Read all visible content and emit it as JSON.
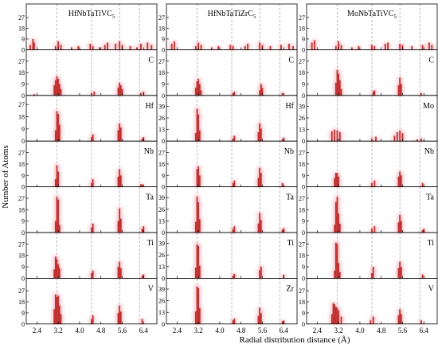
{
  "chart_data": {
    "type": "bar",
    "xlabel": "Radial  distribution distance (Å)",
    "ylabel": "Number of Atoms",
    "x_ticks": [
      2.4,
      3.2,
      4.0,
      4.8,
      5.6,
      6.4
    ],
    "x_tick_labels": [
      "2.4",
      "3.2",
      "4.0",
      "4.8",
      "5.6",
      "6.4"
    ],
    "xlim": [
      2.0,
      6.9
    ],
    "reference_lines_x": [
      3.15,
      4.45,
      5.5,
      6.25
    ],
    "bar_color": "#c03030",
    "glow_color": "#f4b8c0",
    "grid": false,
    "columns": [
      {
        "title": "HfNbTaTiVC",
        "title_sub": "5",
        "rows": [
          {
            "label": "",
            "yticks": [
              0,
              9,
              18,
              27
            ],
            "ymax": 33,
            "x": [
              2.15,
              2.25,
              2.3,
              3.1,
              3.2,
              3.3,
              3.7,
              3.95,
              4.4,
              4.5,
              4.75,
              4.95,
              5.05,
              5.35,
              5.5,
              5.6,
              5.9,
              6.15,
              6.3,
              6.55,
              6.7
            ],
            "values": [
              4,
              9,
              6,
              3,
              7,
              4,
              2,
              3,
              5,
              3,
              2,
              4,
              6,
              5,
              7,
              4,
              3,
              2,
              5,
              6,
              4
            ]
          },
          {
            "label": "C",
            "yticks": [
              0,
              9,
              18,
              27
            ],
            "ymax": 31,
            "x": [
              2.3,
              3.05,
              3.1,
              3.15,
              3.2,
              3.25,
              3.3,
              4.45,
              4.55,
              5.45,
              5.5,
              5.55,
              5.6,
              6.3,
              6.4
            ],
            "values": [
              1,
              8,
              12,
              15,
              13,
              9,
              5,
              2,
              3,
              6,
              10,
              8,
              5,
              2,
              3
            ]
          },
          {
            "label": "Hf",
            "yticks": [
              0,
              9,
              18,
              27
            ],
            "ymax": 29,
            "x": [
              3.1,
              3.15,
              3.2,
              3.25,
              4.45,
              4.5,
              5.45,
              5.5,
              5.55,
              6.35,
              6.4
            ],
            "values": [
              8,
              22,
              20,
              12,
              3,
              5,
              8,
              13,
              10,
              2,
              3
            ]
          },
          {
            "label": "Nb",
            "yticks": [
              0,
              9,
              18,
              27
            ],
            "ymax": 31,
            "x": [
              3.1,
              3.15,
              3.2,
              4.45,
              4.5,
              5.45,
              5.5,
              5.55,
              6.3,
              6.35
            ],
            "values": [
              6,
              17,
              12,
              3,
              6,
              8,
              14,
              9,
              2,
              2
            ]
          },
          {
            "label": "Ta",
            "yticks": [
              0,
              9,
              18,
              27
            ],
            "ymax": 31,
            "x": [
              3.1,
              3.15,
              3.2,
              3.25,
              4.45,
              4.5,
              5.45,
              5.5,
              5.55,
              6.35,
              6.4
            ],
            "values": [
              9,
              28,
              26,
              6,
              4,
              7,
              9,
              19,
              11,
              3,
              5
            ]
          },
          {
            "label": "Ti",
            "yticks": [
              0,
              9,
              18,
              27
            ],
            "ymax": 31,
            "x": [
              3.05,
              3.1,
              3.15,
              3.2,
              3.25,
              4.45,
              4.5,
              5.45,
              5.5,
              5.55,
              6.35,
              6.4
            ],
            "values": [
              7,
              17,
              15,
              11,
              8,
              4,
              6,
              9,
              13,
              8,
              2,
              3
            ]
          },
          {
            "label": "V",
            "yticks": [
              0,
              9,
              18,
              27
            ],
            "ymax": 32,
            "x": [
              3.05,
              3.1,
              3.15,
              3.2,
              3.25,
              3.3,
              4.45,
              4.5,
              5.45,
              5.5,
              5.55,
              6.35
            ],
            "values": [
              12,
              24,
              22,
              23,
              15,
              8,
              4,
              7,
              9,
              15,
              10,
              4
            ]
          }
        ]
      },
      {
        "title": "HfNbTaTiZrC",
        "title_sub": "5",
        "rows": [
          {
            "label": "",
            "yticks": [
              0,
              9,
              18,
              27
            ],
            "ymax": 33,
            "x": [
              2.2,
              2.3,
              3.1,
              3.2,
              3.3,
              3.7,
              3.95,
              4.4,
              4.5,
              4.95,
              5.05,
              5.5,
              5.6,
              5.9,
              6.3,
              6.6,
              6.75
            ],
            "values": [
              5,
              7,
              3,
              6,
              4,
              2,
              3,
              4,
              3,
              3,
              5,
              6,
              4,
              3,
              4,
              5,
              3
            ]
          },
          {
            "label": "C",
            "yticks": [
              0,
              9,
              18,
              27
            ],
            "ymax": 31,
            "x": [
              3.1,
              3.15,
              3.2,
              3.25,
              3.3,
              4.5,
              4.55,
              5.5,
              5.55,
              5.6,
              6.35
            ],
            "values": [
              6,
              11,
              13,
              9,
              4,
              2,
              3,
              4,
              9,
              6,
              2
            ]
          },
          {
            "label": "Hf",
            "yticks": [
              0,
              13,
              26,
              39
            ],
            "ymax": 44,
            "x": [
              3.1,
              3.15,
              3.2,
              3.25,
              4.5,
              4.55,
              5.45,
              5.5,
              5.55,
              6.35,
              6.4
            ],
            "values": [
              9,
              36,
              30,
              12,
              3,
              6,
              10,
              20,
              14,
              2,
              4
            ]
          },
          {
            "label": "Nb",
            "yticks": [
              0,
              9,
              18,
              27
            ],
            "ymax": 31,
            "x": [
              3.15,
              3.2,
              3.25,
              4.5,
              4.55,
              5.45,
              5.5,
              5.55,
              6.35
            ],
            "values": [
              14,
              16,
              9,
              3,
              5,
              7,
              15,
              11,
              3
            ]
          },
          {
            "label": "Ta",
            "yticks": [
              0,
              13,
              26,
              39
            ],
            "ymax": 44,
            "x": [
              3.1,
              3.15,
              3.2,
              3.25,
              4.5,
              4.55,
              5.45,
              5.5,
              5.55,
              6.35,
              6.4
            ],
            "values": [
              12,
              40,
              34,
              15,
              4,
              7,
              10,
              22,
              14,
              3,
              5
            ]
          },
          {
            "label": "Ti",
            "yticks": [
              0,
              13,
              26,
              39
            ],
            "ymax": 44,
            "x": [
              3.1,
              3.15,
              3.2,
              3.25,
              4.5,
              4.55,
              5.5,
              5.55,
              6.4
            ],
            "values": [
              12,
              38,
              36,
              14,
              3,
              5,
              9,
              13,
              4
            ]
          },
          {
            "label": "Zr",
            "yticks": [
              0,
              13,
              26,
              39
            ],
            "ymax": 44,
            "x": [
              3.1,
              3.15,
              3.2,
              3.25,
              4.5,
              4.55,
              5.45,
              5.5,
              5.55,
              6.35,
              6.4
            ],
            "values": [
              14,
              42,
              40,
              18,
              4,
              6,
              9,
              18,
              12,
              3,
              4
            ]
          }
        ]
      },
      {
        "title": "MoNbTaTiVC",
        "title_sub": "5",
        "rows": [
          {
            "label": "",
            "yticks": [
              0,
              9,
              18,
              27
            ],
            "ymax": 33,
            "x": [
              2.2,
              2.3,
              3.1,
              3.2,
              3.3,
              3.7,
              3.95,
              4.45,
              4.55,
              4.95,
              5.05,
              5.5,
              5.6,
              5.95,
              6.35,
              6.6,
              6.7
            ],
            "values": [
              6,
              8,
              3,
              7,
              4,
              2,
              3,
              4,
              3,
              5,
              6,
              5,
              4,
              3,
              4,
              6,
              4
            ]
          },
          {
            "label": "C",
            "yticks": [
              0,
              9,
              18,
              27
            ],
            "ymax": 31,
            "x": [
              3.1,
              3.15,
              3.2,
              3.25,
              3.3,
              4.5,
              4.55,
              5.45,
              5.5,
              5.55,
              6.3
            ],
            "values": [
              10,
              20,
              17,
              12,
              5,
              3,
              4,
              8,
              14,
              9,
              2
            ]
          },
          {
            "label": "Mo",
            "yticks": [
              0,
              13,
              26,
              39
            ],
            "ymax": 44,
            "x": [
              2.95,
              3.05,
              3.15,
              3.25,
              4.45,
              4.6,
              5.3,
              5.4,
              5.5,
              5.6,
              6.15,
              6.3
            ],
            "values": [
              11,
              13,
              12,
              10,
              3,
              5,
              6,
              10,
              12,
              9,
              2,
              3
            ]
          },
          {
            "label": "Nb",
            "yticks": [
              0,
              9,
              18,
              27
            ],
            "ymax": 31,
            "x": [
              3.05,
              3.1,
              3.15,
              3.2,
              4.45,
              4.55,
              5.45,
              5.5,
              5.55,
              6.35
            ],
            "values": [
              7,
              11,
              11,
              8,
              3,
              5,
              8,
              12,
              9,
              3
            ]
          },
          {
            "label": "Ta",
            "yticks": [
              0,
              9,
              18,
              27
            ],
            "ymax": 31,
            "x": [
              3.05,
              3.1,
              3.15,
              3.2,
              3.25,
              4.45,
              4.55,
              5.45,
              5.5,
              5.55,
              6.35,
              6.4
            ],
            "values": [
              6,
              24,
              28,
              15,
              7,
              3,
              5,
              8,
              14,
              9,
              2,
              3
            ]
          },
          {
            "label": "Ti",
            "yticks": [
              0,
              9,
              18,
              27
            ],
            "ymax": 31,
            "x": [
              3.05,
              3.1,
              3.15,
              3.2,
              3.25,
              4.45,
              4.5,
              5.45,
              5.5,
              5.55,
              6.35
            ],
            "values": [
              6,
              28,
              27,
              12,
              5,
              4,
              9,
              8,
              13,
              9,
              3
            ]
          },
          {
            "label": "V",
            "yticks": [
              0,
              9,
              18,
              27
            ],
            "ymax": 32,
            "x": [
              2.95,
              3.0,
              3.05,
              3.1,
              3.15,
              3.2,
              3.3,
              4.4,
              4.5,
              5.45,
              5.5,
              5.55,
              6.3
            ],
            "values": [
              8,
              17,
              16,
              14,
              13,
              11,
              6,
              3,
              6,
              7,
              12,
              8,
              3
            ]
          }
        ]
      }
    ]
  }
}
